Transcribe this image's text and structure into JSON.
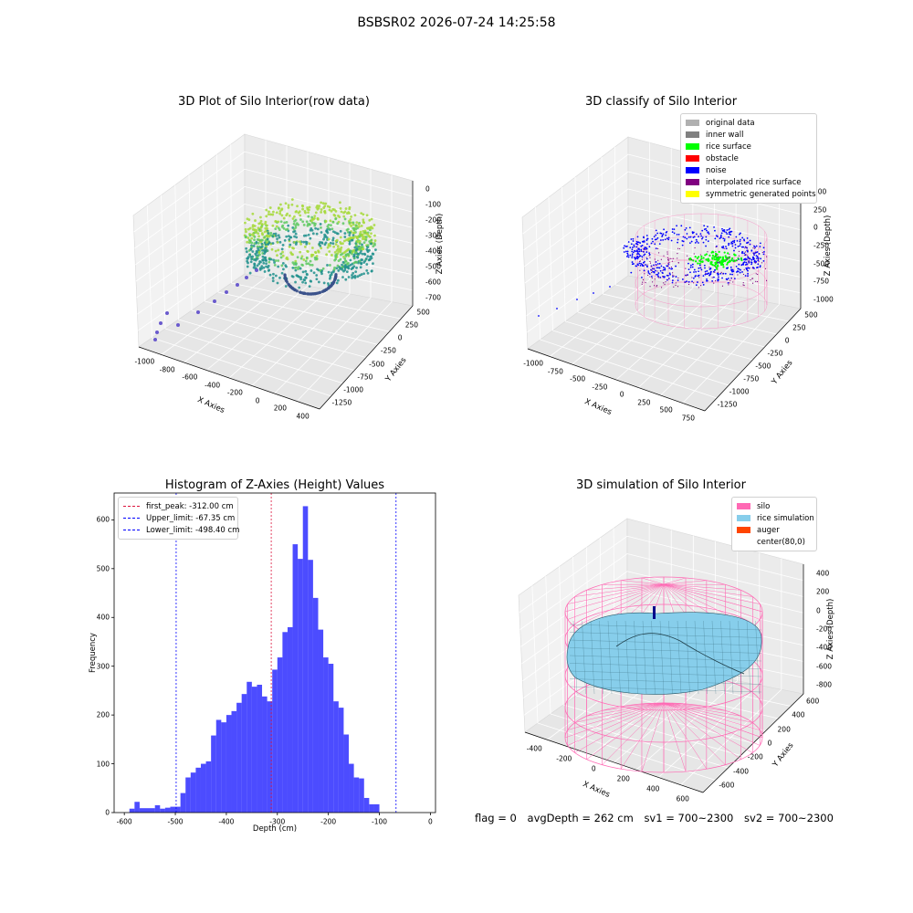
{
  "suptitle": "BSBSR02 2026-07-24 14:25:58",
  "panels": {
    "raw": {
      "title": "3D Plot of Silo Interior(row data)",
      "xlabel": "X Axies",
      "ylabel": "Y Axies",
      "zlabel": "Z Axies (Depth)",
      "xticks": [
        "-1000",
        "-800",
        "-600",
        "-400",
        "-200",
        "0",
        "200",
        "400"
      ],
      "yticks": [
        "500",
        "250",
        "0",
        "-250",
        "-500",
        "-750",
        "-1000",
        "-1250"
      ],
      "zticks": [
        "0",
        "-100",
        "-200",
        "-300",
        "-400",
        "-500",
        "-600",
        "-700"
      ]
    },
    "classify": {
      "title": "3D classify of Silo Interior",
      "xlabel": "X Axies",
      "ylabel": "Y Axies",
      "zlabel": "Z Axies (Depth)",
      "xticks": [
        "-1000",
        "-750",
        "-500",
        "-250",
        "0",
        "250",
        "500",
        "750"
      ],
      "yticks": [
        "500",
        "250",
        "0",
        "-250",
        "-500",
        "-750",
        "-1000",
        "-1250"
      ],
      "zticks": [
        "500",
        "250",
        "0",
        "-250",
        "-500",
        "-750",
        "-1000"
      ],
      "zticks_top": "500",
      "legend": [
        {
          "label": "original data",
          "color": "#b0b0b0"
        },
        {
          "label": "inner wall",
          "color": "#808080"
        },
        {
          "label": "rice surface",
          "color": "#00ff00"
        },
        {
          "label": "obstacle",
          "color": "#ff0000"
        },
        {
          "label": "noise",
          "color": "#0000ff"
        },
        {
          "label": "interpolated rice surface",
          "color": "#800080"
        },
        {
          "label": "symmetric generated points",
          "color": "#ffff00"
        }
      ]
    },
    "simulation": {
      "title": "3D simulation of Silo Interior",
      "xlabel": "X Axies",
      "ylabel": "Y Axies",
      "zlabel": "Z Axies (Depth)",
      "xticks": [
        "-400",
        "-200",
        "0",
        "200",
        "400",
        "600"
      ],
      "yticks": [
        "600",
        "400",
        "200",
        "0",
        "-200",
        "-400",
        "-600"
      ],
      "zticks": [
        "400",
        "200",
        "0",
        "-200",
        "-400",
        "-600",
        "-800"
      ],
      "legend": [
        {
          "label": "silo",
          "color": "#ff69b4"
        },
        {
          "label": "rice simulation",
          "color": "#87ceeb"
        },
        {
          "label": "auger",
          "color": "#ff4500"
        },
        {
          "label": "center(80,0)",
          "color": "#ffffff"
        }
      ]
    }
  },
  "status": {
    "flag": "flag = 0",
    "avg_depth": "avgDepth = 262 cm",
    "sv1": "sv1 = 700~2300",
    "sv2": "sv2 = 700~2300"
  },
  "chart_data": [
    {
      "type": "bar",
      "title": "Histogram of Z-Axies (Height) Values",
      "xlabel": "Depth (cm)",
      "ylabel": "Frequency",
      "xlim": [
        -620,
        10
      ],
      "ylim": [
        0,
        655
      ],
      "xticks": [
        -600,
        -500,
        -400,
        -300,
        -200,
        -100,
        0
      ],
      "yticks": [
        0,
        100,
        200,
        300,
        400,
        500,
        600
      ],
      "bar_color": "#0000ff",
      "bins": [
        {
          "x0": -590,
          "x1": -580,
          "v": 8
        },
        {
          "x0": -580,
          "x1": -570,
          "v": 22
        },
        {
          "x0": -570,
          "x1": -540,
          "v": 9
        },
        {
          "x0": -540,
          "x1": -530,
          "v": 15
        },
        {
          "x0": -530,
          "x1": -520,
          "v": 8
        },
        {
          "x0": -520,
          "x1": -510,
          "v": 10
        },
        {
          "x0": -510,
          "x1": -490,
          "v": 12
        },
        {
          "x0": -490,
          "x1": -480,
          "v": 40
        },
        {
          "x0": -480,
          "x1": -470,
          "v": 72
        },
        {
          "x0": -470,
          "x1": -460,
          "v": 82
        },
        {
          "x0": -460,
          "x1": -450,
          "v": 92
        },
        {
          "x0": -450,
          "x1": -440,
          "v": 100
        },
        {
          "x0": -440,
          "x1": -430,
          "v": 105
        },
        {
          "x0": -430,
          "x1": -420,
          "v": 158
        },
        {
          "x0": -420,
          "x1": -410,
          "v": 190
        },
        {
          "x0": -410,
          "x1": -400,
          "v": 185
        },
        {
          "x0": -400,
          "x1": -390,
          "v": 200
        },
        {
          "x0": -390,
          "x1": -380,
          "v": 208
        },
        {
          "x0": -380,
          "x1": -370,
          "v": 225
        },
        {
          "x0": -370,
          "x1": -360,
          "v": 243
        },
        {
          "x0": -360,
          "x1": -350,
          "v": 268
        },
        {
          "x0": -350,
          "x1": -340,
          "v": 258
        },
        {
          "x0": -340,
          "x1": -330,
          "v": 262
        },
        {
          "x0": -330,
          "x1": -320,
          "v": 238
        },
        {
          "x0": -320,
          "x1": -310,
          "v": 228
        },
        {
          "x0": -310,
          "x1": -300,
          "v": 293
        },
        {
          "x0": -300,
          "x1": -290,
          "v": 318
        },
        {
          "x0": -290,
          "x1": -280,
          "v": 370
        },
        {
          "x0": -280,
          "x1": -270,
          "v": 380
        },
        {
          "x0": -270,
          "x1": -260,
          "v": 550
        },
        {
          "x0": -260,
          "x1": -250,
          "v": 520
        },
        {
          "x0": -250,
          "x1": -240,
          "v": 628
        },
        {
          "x0": -240,
          "x1": -230,
          "v": 518
        },
        {
          "x0": -230,
          "x1": -220,
          "v": 440
        },
        {
          "x0": -220,
          "x1": -210,
          "v": 375
        },
        {
          "x0": -210,
          "x1": -200,
          "v": 318
        },
        {
          "x0": -200,
          "x1": -190,
          "v": 305
        },
        {
          "x0": -190,
          "x1": -180,
          "v": 228
        },
        {
          "x0": -180,
          "x1": -170,
          "v": 215
        },
        {
          "x0": -170,
          "x1": -160,
          "v": 160
        },
        {
          "x0": -160,
          "x1": -150,
          "v": 100
        },
        {
          "x0": -150,
          "x1": -140,
          "v": 72
        },
        {
          "x0": -140,
          "x1": -130,
          "v": 70
        },
        {
          "x0": -130,
          "x1": -120,
          "v": 30
        },
        {
          "x0": -120,
          "x1": -110,
          "v": 17
        },
        {
          "x0": -110,
          "x1": -100,
          "v": 17
        }
      ],
      "bins_note_offset": 88,
      "vlines": [
        {
          "label": "first_peak: -312.00 cm",
          "x": -312.0,
          "color": "#dc143c"
        },
        {
          "label": "Upper_limit: -67.35 cm",
          "x": -67.35,
          "color": "#0000ff"
        },
        {
          "label": "Lower_limit: -498.40 cm",
          "x": -498.4,
          "color": "#0000ff"
        }
      ],
      "legend_position": "top-left"
    }
  ]
}
